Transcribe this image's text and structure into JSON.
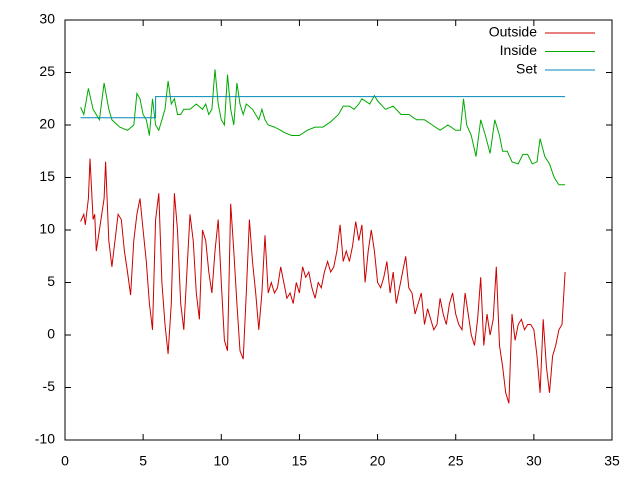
{
  "chart_data": {
    "type": "line",
    "xlim": [
      0,
      35
    ],
    "xticks": [
      0,
      5,
      10,
      15,
      20,
      25,
      30,
      35
    ],
    "ylim": [
      -10,
      30
    ],
    "yticks": [
      -10,
      -5,
      0,
      5,
      10,
      15,
      20,
      25,
      30
    ],
    "legend": "top-right",
    "series": [
      {
        "name": "Outside",
        "color": "#cc0000",
        "x": [
          1.0,
          1.2,
          1.3,
          1.5,
          1.6,
          1.8,
          1.9,
          2.0,
          2.2,
          2.5,
          2.6,
          2.8,
          3.0,
          3.2,
          3.4,
          3.6,
          3.8,
          4.0,
          4.2,
          4.4,
          4.6,
          4.8,
          5.0,
          5.2,
          5.4,
          5.6,
          5.8,
          6.0,
          6.2,
          6.4,
          6.6,
          6.8,
          7.0,
          7.2,
          7.4,
          7.6,
          7.8,
          8.0,
          8.2,
          8.4,
          8.6,
          8.8,
          9.0,
          9.2,
          9.4,
          9.6,
          9.8,
          10.0,
          10.2,
          10.4,
          10.6,
          10.8,
          11.0,
          11.2,
          11.4,
          11.6,
          11.8,
          12.0,
          12.2,
          12.4,
          12.6,
          12.8,
          13.0,
          13.2,
          13.4,
          13.6,
          13.8,
          14.0,
          14.2,
          14.4,
          14.6,
          14.8,
          15.0,
          15.2,
          15.4,
          15.6,
          15.8,
          16.0,
          16.2,
          16.4,
          16.6,
          16.8,
          17.0,
          17.2,
          17.4,
          17.6,
          17.8,
          18.0,
          18.2,
          18.4,
          18.6,
          18.8,
          19.0,
          19.2,
          19.4,
          19.6,
          19.8,
          20.0,
          20.2,
          20.4,
          20.6,
          20.8,
          21.0,
          21.2,
          21.4,
          21.6,
          21.8,
          22.0,
          22.2,
          22.4,
          22.6,
          22.8,
          23.0,
          23.2,
          23.4,
          23.6,
          23.8,
          24.0,
          24.2,
          24.4,
          24.6,
          24.8,
          25.0,
          25.2,
          25.4,
          25.6,
          25.8,
          26.0,
          26.2,
          26.4,
          26.6,
          26.8,
          27.0,
          27.2,
          27.4,
          27.6,
          27.8,
          28.0,
          28.2,
          28.4,
          28.6,
          28.8,
          29.0,
          29.2,
          29.4,
          29.6,
          29.8,
          30.0,
          30.2,
          30.4,
          30.6,
          30.8,
          31.0,
          31.2,
          31.4,
          31.6,
          31.8,
          32.0
        ],
        "values": [
          10.8,
          11.5,
          10.5,
          13,
          16.8,
          11,
          11.5,
          8,
          10,
          13,
          16.5,
          9,
          6.5,
          9,
          11.5,
          11,
          8,
          6,
          3.8,
          9,
          11.5,
          13,
          10,
          7,
          3,
          0.5,
          11,
          13.5,
          5,
          1,
          -1.8,
          3,
          13.5,
          10,
          3,
          0.5,
          6,
          11.5,
          9,
          4,
          1.5,
          10,
          9,
          6,
          4,
          8,
          11,
          5,
          -0.5,
          -1.5,
          12.5,
          8,
          3,
          -1.5,
          -2.3,
          4,
          11,
          7,
          4,
          0.5,
          4,
          9.5,
          4,
          5,
          4,
          4.5,
          6.5,
          5,
          3.5,
          4,
          3,
          5,
          4,
          6.5,
          5.5,
          6,
          4.5,
          3.5,
          5,
          4.5,
          6,
          7,
          6,
          6.5,
          8,
          10.5,
          7,
          8,
          7,
          8.5,
          10.8,
          9,
          10.5,
          5,
          8,
          10,
          8,
          5,
          4.5,
          5.5,
          7,
          4,
          6,
          3,
          4.5,
          6,
          7.5,
          4.5,
          4,
          2,
          3,
          4,
          1,
          2.5,
          1.5,
          0.5,
          1,
          3.5,
          2,
          1,
          3,
          4,
          2,
          1,
          0.5,
          4,
          2,
          0,
          -1,
          1.5,
          5.5,
          -1,
          2,
          0,
          1.5,
          6.5,
          -1,
          -3,
          -5.5,
          -6.5,
          2,
          -0.5,
          1,
          1.5,
          0.5,
          1,
          1,
          0.5,
          -2,
          -5.5,
          1.5,
          -3,
          -5.5,
          -2,
          -1,
          0.5,
          1,
          6
        ]
      },
      {
        "name": "Inside",
        "color": "#00aa00",
        "x": [
          1.0,
          1.2,
          1.5,
          1.8,
          2.2,
          2.5,
          2.8,
          3.0,
          3.5,
          4.0,
          4.4,
          4.6,
          4.8,
          5.0,
          5.2,
          5.4,
          5.6,
          5.8,
          6.0,
          6.2,
          6.4,
          6.6,
          6.8,
          7.0,
          7.2,
          7.4,
          7.6,
          8.0,
          8.4,
          8.8,
          9.0,
          9.2,
          9.4,
          9.6,
          9.8,
          10.0,
          10.2,
          10.4,
          10.6,
          10.8,
          11.0,
          11.2,
          11.4,
          11.6,
          12.0,
          12.4,
          12.6,
          12.8,
          13.0,
          13.4,
          13.8,
          14.0,
          14.5,
          15.0,
          15.5,
          16.0,
          16.5,
          17.0,
          17.5,
          17.8,
          18.2,
          18.5,
          18.8,
          19.0,
          19.5,
          19.8,
          20.0,
          20.5,
          21.0,
          21.5,
          22.0,
          22.5,
          23.0,
          23.5,
          24.0,
          24.5,
          25.0,
          25.3,
          25.5,
          25.7,
          26.0,
          26.3,
          26.6,
          26.9,
          27.2,
          27.5,
          27.8,
          28.0,
          28.3,
          28.6,
          29.0,
          29.3,
          29.6,
          29.9,
          30.2,
          30.4,
          30.7,
          31.0,
          31.3,
          31.6,
          32.0
        ],
        "values": [
          21.7,
          21,
          23.5,
          21.5,
          20.5,
          24,
          21.5,
          20.5,
          19.8,
          19.5,
          20,
          23,
          22.5,
          21,
          20.5,
          19,
          22.5,
          20,
          19.5,
          20.5,
          21.5,
          24.2,
          22,
          22.5,
          21,
          21,
          21.5,
          21.5,
          22,
          21.5,
          22,
          21,
          21.5,
          25.3,
          22,
          20.5,
          20,
          24.8,
          21.5,
          20,
          24,
          22,
          21,
          22,
          21.5,
          20.5,
          21.5,
          20.5,
          20,
          19.8,
          19.5,
          19.3,
          19,
          19,
          19.5,
          19.8,
          19.8,
          20.3,
          21,
          21.8,
          21.8,
          21.5,
          22,
          22.5,
          22,
          22.8,
          22.3,
          21.5,
          21.8,
          21,
          21,
          20.5,
          20.5,
          20,
          19.5,
          20,
          19.5,
          19.5,
          22.5,
          20,
          19,
          17,
          20.5,
          19,
          17.3,
          20.5,
          19,
          17.5,
          17.5,
          16.5,
          16.3,
          17.2,
          17.2,
          16.3,
          16.5,
          18.7,
          17,
          16.3,
          15,
          14.3,
          14.3
        ]
      },
      {
        "name": "Set",
        "color": "#0088bb",
        "x": [
          1.0,
          5.8,
          5.8,
          32.0
        ],
        "values": [
          20.7,
          20.7,
          22.7,
          22.7
        ]
      }
    ]
  }
}
